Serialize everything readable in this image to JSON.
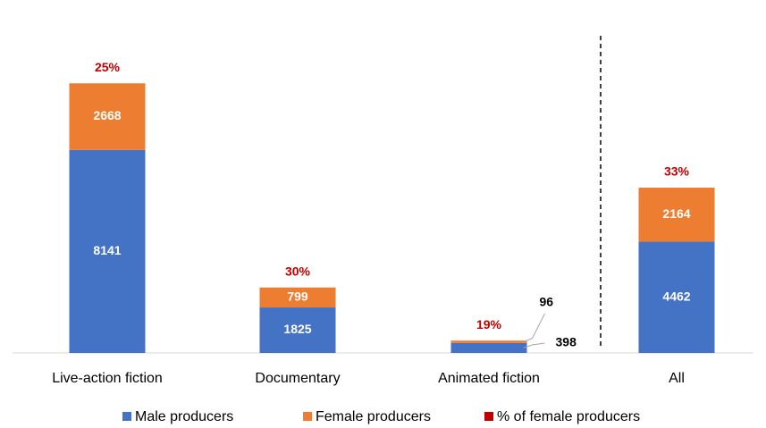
{
  "chart_data": {
    "type": "stacked_bar",
    "categories": [
      "Live-action fiction",
      "Documentary",
      "Animated fiction",
      "All"
    ],
    "series": [
      {
        "name": "Male producers",
        "color": "#4472c4",
        "values": [
          8141,
          1825,
          398,
          4462
        ]
      },
      {
        "name": "Female producers",
        "color": "#ed7d31",
        "values": [
          2668,
          799,
          96,
          2164
        ]
      },
      {
        "name": "% of female producers",
        "color": "#c00000",
        "values": [
          25,
          30,
          19,
          33
        ],
        "value_labels": [
          "25%",
          "30%",
          "19%",
          "33%"
        ]
      }
    ],
    "ylim": [
      0,
      12000
    ]
  }
}
